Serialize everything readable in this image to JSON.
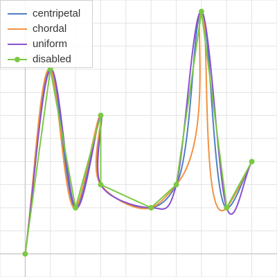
{
  "chart_data": {
    "type": "line",
    "title": "",
    "xlabel": "",
    "ylabel": "",
    "xlim": [
      -1,
      10
    ],
    "ylim": [
      -1,
      11
    ],
    "x_grid_step": 1,
    "y_grid_step": 1,
    "grid": true,
    "legend_position": "top-left",
    "points": [
      [
        0,
        0
      ],
      [
        1,
        8
      ],
      [
        2,
        2
      ],
      [
        3,
        6
      ],
      [
        3,
        3
      ],
      [
        5,
        2
      ],
      [
        6,
        3
      ],
      [
        7,
        10.5
      ],
      [
        8,
        2
      ],
      [
        9,
        4
      ]
    ],
    "series": [
      {
        "name": "centripetal",
        "color": "#4e7ec3",
        "interpolation": "Catmull-Rom (centripetal)",
        "markers": false,
        "values": [
          [
            0,
            0
          ],
          [
            1,
            8
          ],
          [
            2,
            2
          ],
          [
            3,
            6
          ],
          [
            3,
            3
          ],
          [
            5,
            2
          ],
          [
            6,
            3
          ],
          [
            7,
            10.5
          ],
          [
            8,
            2
          ],
          [
            9,
            4
          ]
        ]
      },
      {
        "name": "chordal",
        "color": "#f29141",
        "interpolation": "Catmull-Rom (chordal)",
        "markers": false,
        "values": [
          [
            0,
            0
          ],
          [
            1,
            8
          ],
          [
            2,
            2
          ],
          [
            3,
            6
          ],
          [
            3,
            3
          ],
          [
            5,
            2
          ],
          [
            6,
            3
          ],
          [
            7,
            10.5
          ],
          [
            8,
            2
          ],
          [
            9,
            4
          ]
        ]
      },
      {
        "name": "uniform",
        "color": "#8a4fd0",
        "interpolation": "Catmull-Rom (uniform)",
        "markers": false,
        "values": [
          [
            0,
            0
          ],
          [
            1,
            8
          ],
          [
            2,
            2
          ],
          [
            3,
            6
          ],
          [
            3,
            3
          ],
          [
            5,
            2
          ],
          [
            6,
            3
          ],
          [
            7,
            10.5
          ],
          [
            8,
            2
          ],
          [
            9,
            4
          ]
        ]
      },
      {
        "name": "disabled",
        "color": "#7ac943",
        "interpolation": "straight",
        "markers": true,
        "values": [
          [
            0,
            0
          ],
          [
            1,
            8
          ],
          [
            2,
            2
          ],
          [
            3,
            6
          ],
          [
            3,
            3
          ],
          [
            5,
            2
          ],
          [
            6,
            3
          ],
          [
            7,
            10.5
          ],
          [
            8,
            2
          ],
          [
            9,
            4
          ]
        ]
      }
    ]
  },
  "legend": {
    "items": [
      "centripetal",
      "chordal",
      "uniform",
      "disabled"
    ]
  }
}
